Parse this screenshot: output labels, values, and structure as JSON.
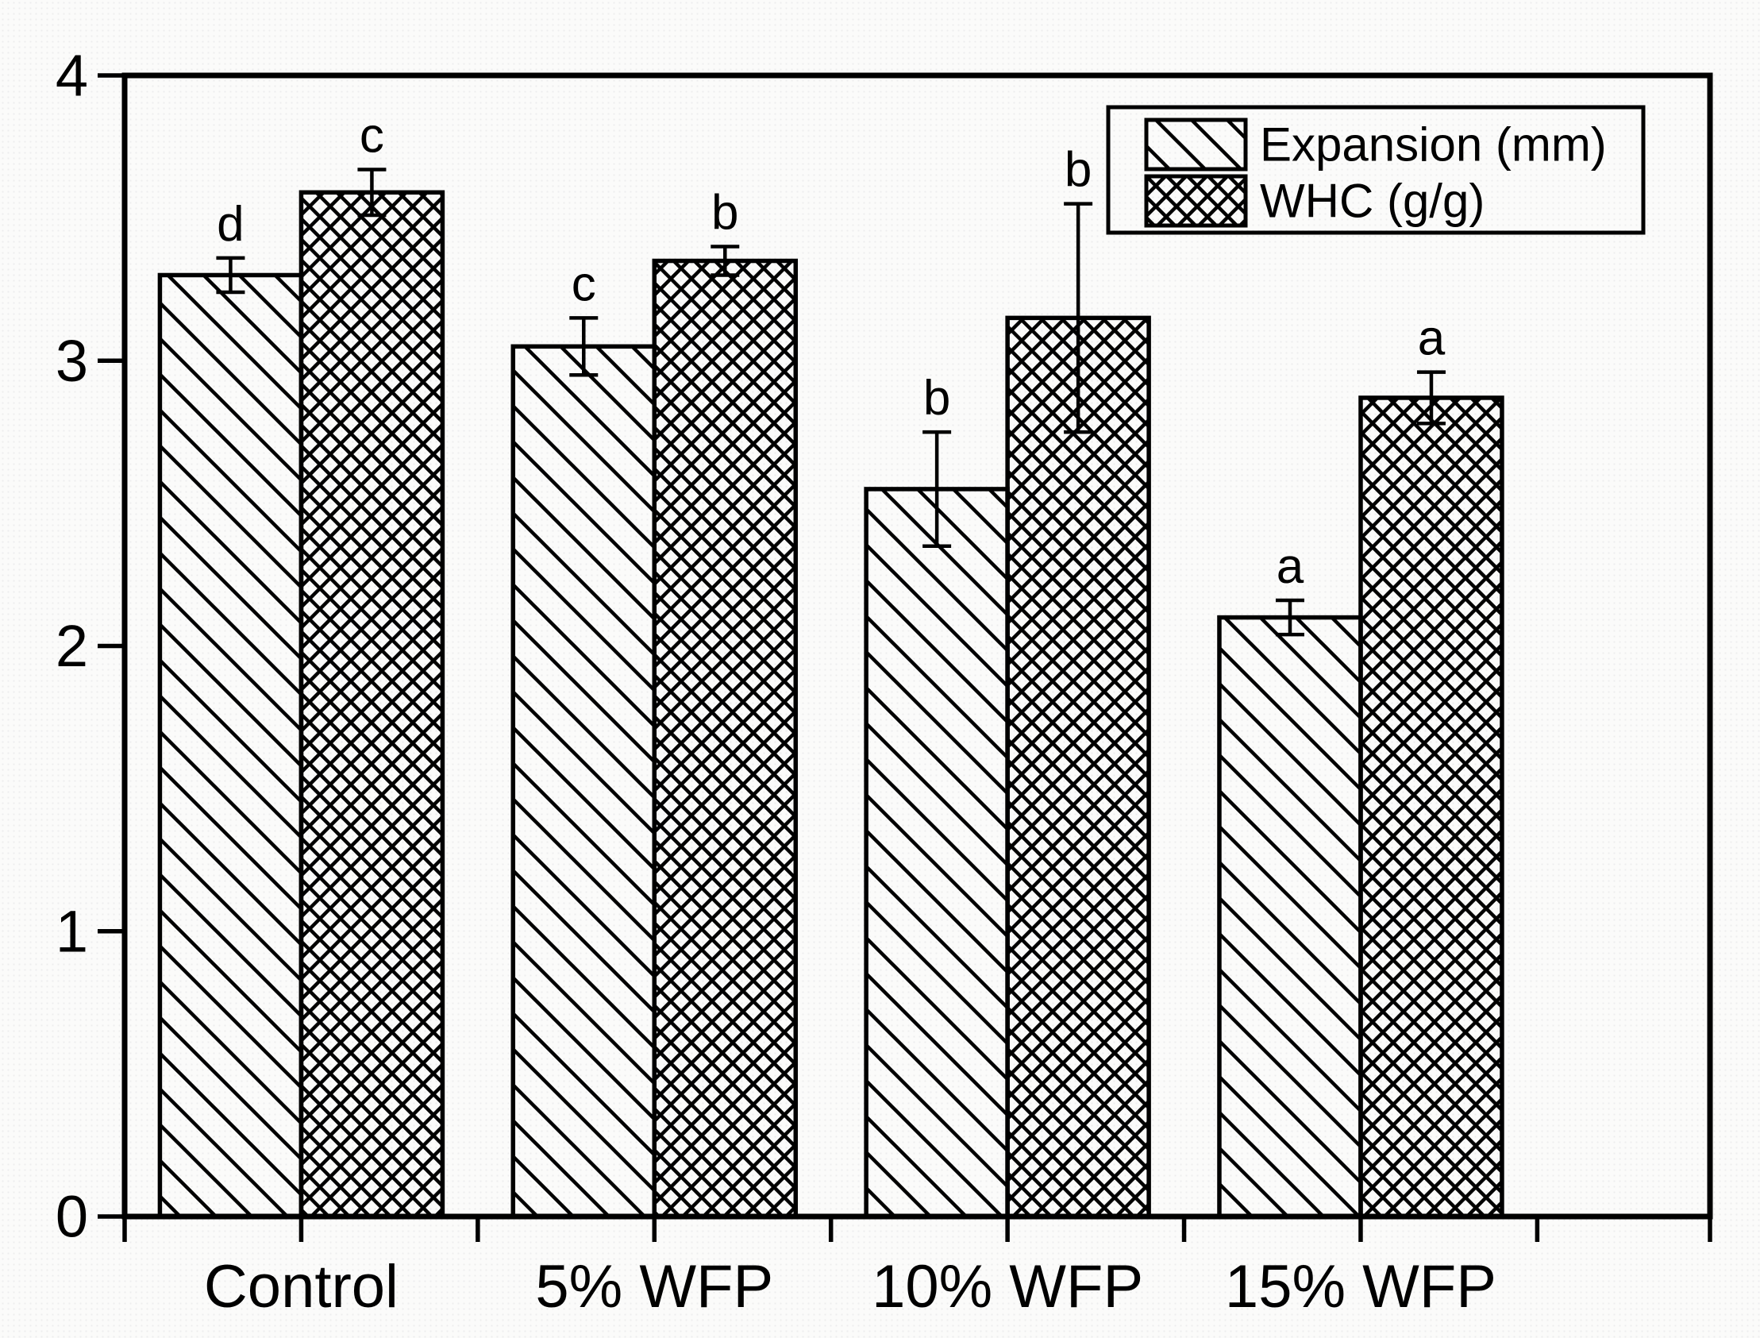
{
  "chart_data": {
    "type": "bar",
    "title": "",
    "xlabel": "",
    "ylabel": "",
    "categories": [
      "Control",
      "5% WFP",
      "10% WFP",
      "15% WFP"
    ],
    "series": [
      {
        "name": "Expansion (mm)",
        "pattern": "diagonal-hatch",
        "values": [
          3.3,
          3.05,
          2.55,
          2.1
        ],
        "errors": [
          0.06,
          0.1,
          0.2,
          0.06
        ],
        "sig_letters": [
          "d",
          "c",
          "b",
          "a"
        ]
      },
      {
        "name": "WHC (g/g)",
        "pattern": "cross-hatch",
        "values": [
          3.59,
          3.35,
          3.15,
          2.87
        ],
        "errors": [
          0.08,
          0.05,
          0.4,
          0.09
        ],
        "sig_letters": [
          "c",
          "b",
          "b",
          "a"
        ]
      }
    ],
    "ylim": [
      0,
      4
    ],
    "yticks": [
      0,
      1,
      2,
      3,
      4
    ],
    "x_axis_slots": 4.49,
    "grid": false,
    "legend_position": "top-right",
    "error_bars": "both-caps",
    "colors": {
      "foreground": "#000000",
      "background": "#fbfbfa"
    }
  }
}
